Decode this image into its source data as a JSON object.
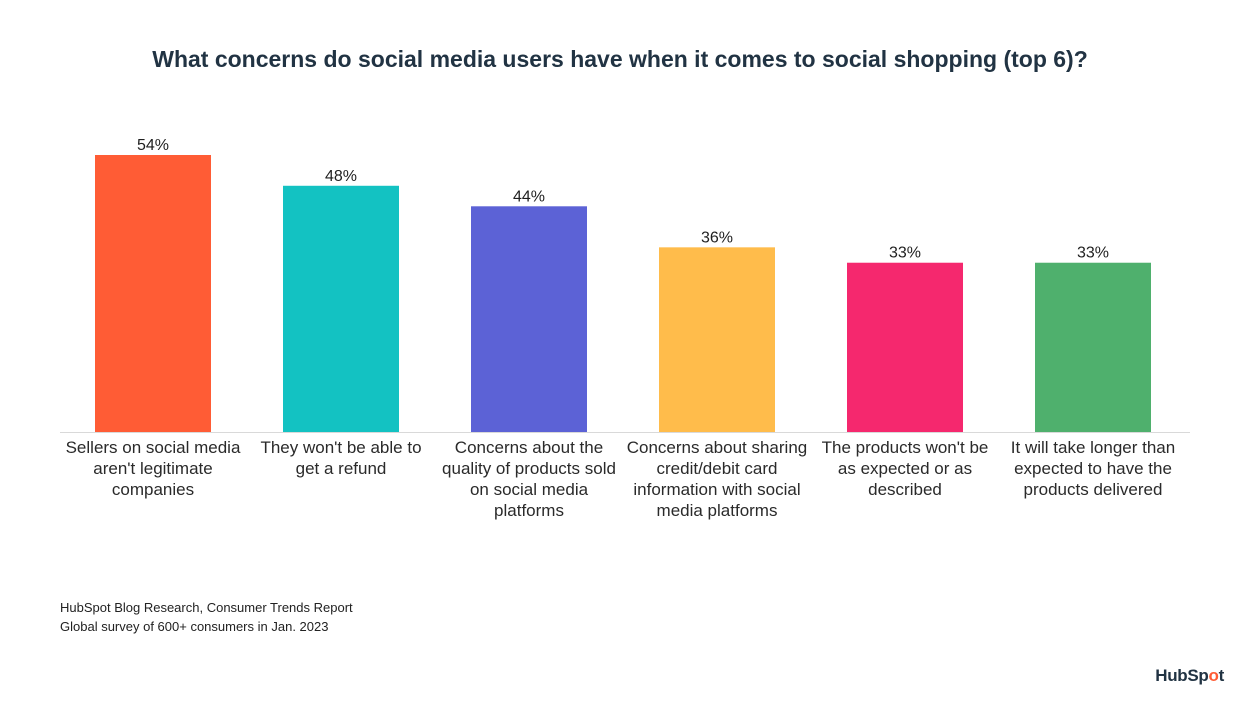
{
  "chart_data": {
    "type": "bar",
    "title": "What concerns do social media users have when it comes to social shopping (top 6)?",
    "categories": [
      "Sellers on social media aren't legitimate companies",
      "They won't be able to get a refund",
      "Concerns about the quality of products sold on social media platforms",
      "Concerns about sharing credit/debit card information with social media platforms",
      "The products won't be as expected or as described",
      "It will take longer than expected to have the products delivered"
    ],
    "values": [
      54,
      48,
      44,
      36,
      33,
      33
    ],
    "value_labels": [
      "54%",
      "48%",
      "44%",
      "36%",
      "33%",
      "33%"
    ],
    "colors": [
      "#ff5c35",
      "#13c2c2",
      "#5c62d6",
      "#ffbc4b",
      "#f5286e",
      "#4fb06d"
    ],
    "ylim": [
      0,
      54
    ],
    "grid": false,
    "legend": "none"
  },
  "footer": {
    "source_line1": "HubSpot Blog Research, Consumer Trends Report",
    "source_line2": "Global survey of 600+ consumers in Jan. 2023"
  },
  "brand": {
    "text_before": "HubSp",
    "text_dot": "o",
    "text_after": "t"
  }
}
